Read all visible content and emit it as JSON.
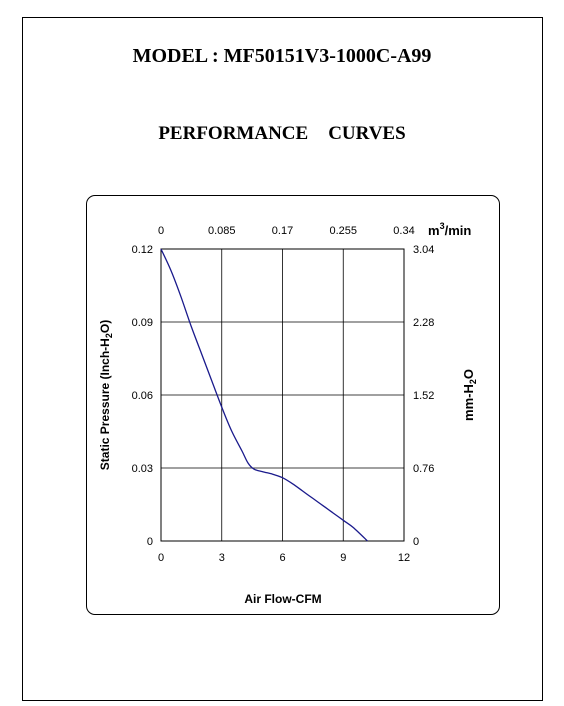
{
  "header": {
    "model": "MODEL : MF50151V3-1000C-A99",
    "subtitle_left": "PERFORMANCE",
    "subtitle_right": "CURVES"
  },
  "colors": {
    "curve": "#1a1a8c",
    "grid": "#000000"
  },
  "chart_data": {
    "type": "line",
    "title": "PERFORMANCE CURVES",
    "xlabel": "Air Flow-CFM",
    "ylabel": "Static Pressure (Inch-H2O)",
    "x2label": "m3/min",
    "y2label": "mm-H2O",
    "xlim": [
      0,
      12
    ],
    "ylim": [
      0,
      0.12
    ],
    "x_ticks": [
      "0",
      "3",
      "6",
      "9",
      "12"
    ],
    "y_ticks": [
      "0",
      "0.03",
      "0.06",
      "0.09",
      "0.12"
    ],
    "x2_ticks": [
      "0",
      "0.085",
      "0.17",
      "0.255",
      "0.34"
    ],
    "y2_ticks": [
      "0",
      "0.76",
      "1.52",
      "2.28",
      "3.04"
    ],
    "grid": true,
    "series": [
      {
        "values_xy": [
          [
            0,
            0.12
          ],
          [
            0.5,
            0.111
          ],
          [
            1.0,
            0.1
          ],
          [
            1.5,
            0.088
          ],
          [
            2.0,
            0.077
          ],
          [
            2.5,
            0.066
          ],
          [
            3.0,
            0.055
          ],
          [
            3.5,
            0.045
          ],
          [
            4.0,
            0.037
          ],
          [
            4.3,
            0.032
          ],
          [
            4.6,
            0.0295
          ],
          [
            5.0,
            0.0285
          ],
          [
            5.5,
            0.0275
          ],
          [
            6.0,
            0.026
          ],
          [
            6.5,
            0.0235
          ],
          [
            7.0,
            0.0205
          ],
          [
            7.5,
            0.0175
          ],
          [
            8.0,
            0.0145
          ],
          [
            8.5,
            0.0115
          ],
          [
            9.0,
            0.0085
          ],
          [
            9.5,
            0.0055
          ],
          [
            10.2,
            0.0
          ]
        ]
      }
    ]
  }
}
